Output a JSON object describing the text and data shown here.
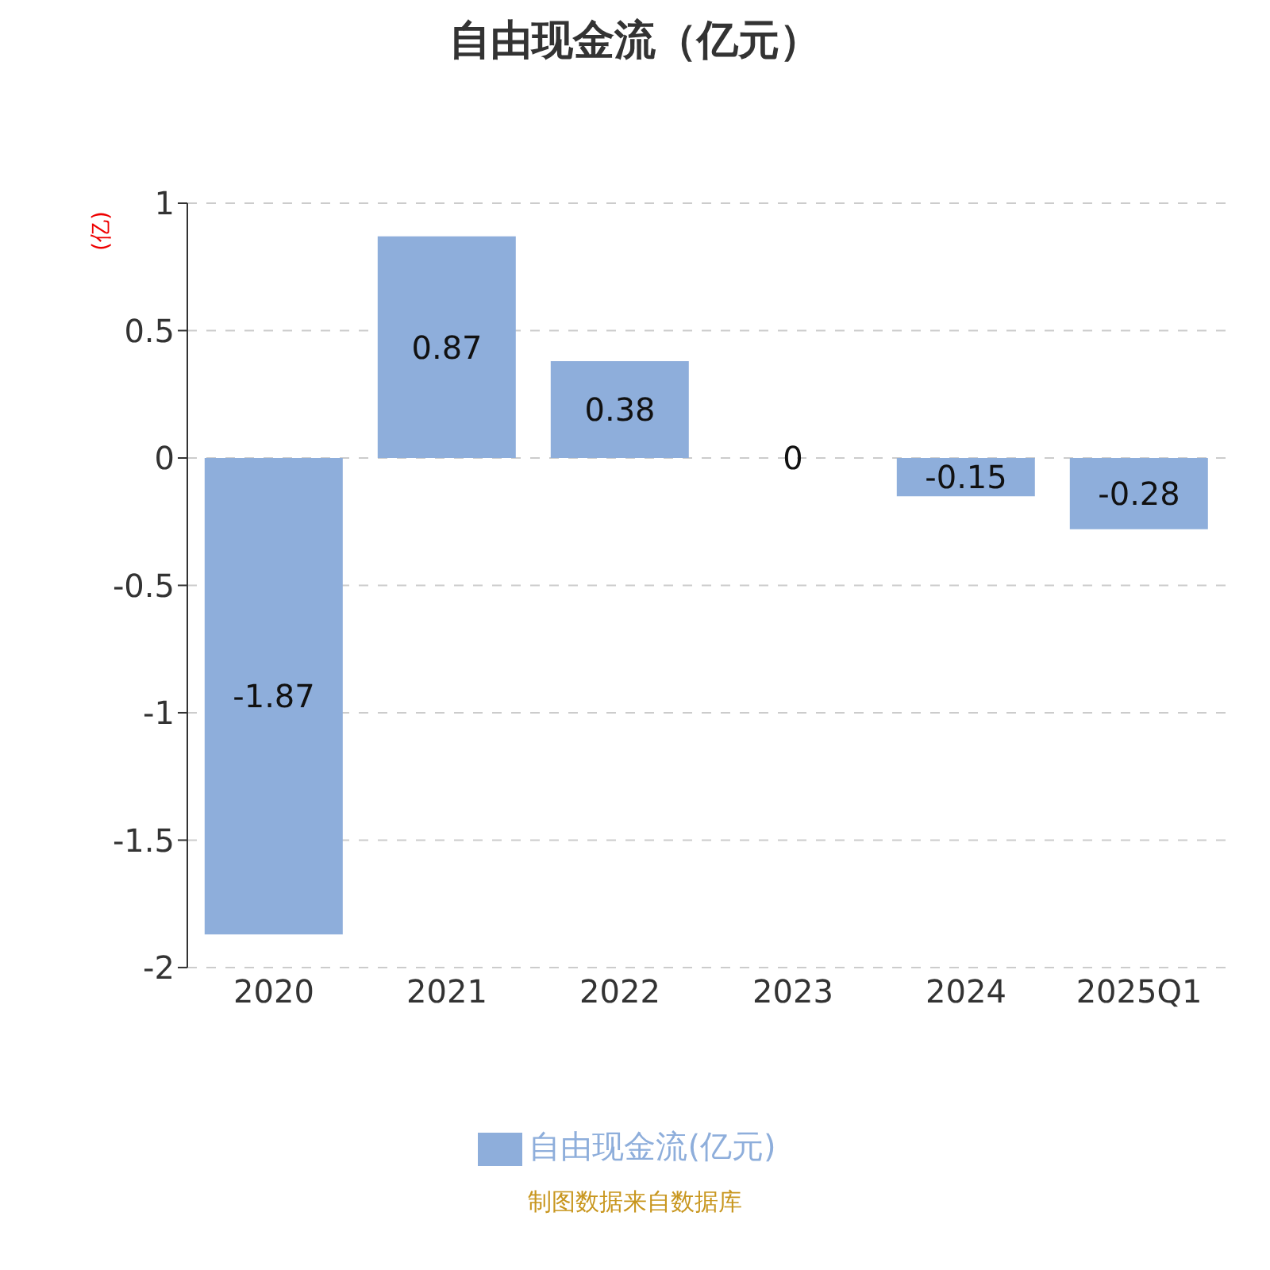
{
  "chart_data": {
    "type": "bar",
    "title": "自由现金流（亿元）",
    "ylabel": "(亿)",
    "categories": [
      "2020",
      "2021",
      "2022",
      "2023",
      "2024",
      "2025Q1"
    ],
    "series": [
      {
        "name": "自由现金流(亿元)",
        "color": "#8eaedb",
        "values": [
          -1.87,
          0.87,
          0.38,
          0,
          -0.15,
          -0.28
        ]
      }
    ],
    "ylim": [
      -2,
      1
    ],
    "yticks": [
      -2,
      -1.5,
      -1,
      -0.5,
      0,
      0.5,
      1
    ],
    "grid": "y",
    "legend": "bottom",
    "data_labels": true,
    "annotations": [
      "制图数据来自数据库"
    ]
  }
}
